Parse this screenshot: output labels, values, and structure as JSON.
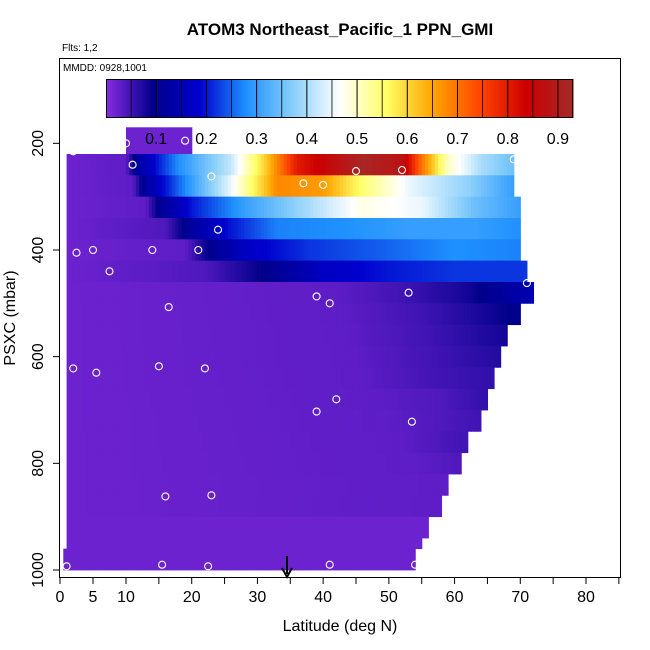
{
  "chart_data": {
    "type": "heatmap",
    "title": "ATOM3 Northeast_Pacific_1 PPN_GMI",
    "subtitle_flights": "Flts: 1,2",
    "subtitle_dates": "MMDD: 0928,1001",
    "xlabel": "Latitude (deg N)",
    "ylabel": "PSXC (mbar)",
    "xlim": [
      0,
      85
    ],
    "ylim": [
      1000,
      0
    ],
    "x_ticks": [
      "0",
      "5",
      "10",
      "20",
      "30",
      "40",
      "50",
      "60",
      "70",
      "80"
    ],
    "x_tick_values": [
      0,
      5,
      10,
      20,
      30,
      40,
      50,
      60,
      70,
      80
    ],
    "y_ticks": [
      "200",
      "400",
      "600",
      "800",
      "1000"
    ],
    "y_tick_values": [
      200,
      400,
      600,
      800,
      1000
    ],
    "colorbar": {
      "ticks": [
        "0.1",
        "0.2",
        "0.3",
        "0.4",
        "0.5",
        "0.6",
        "0.7",
        "0.8",
        "0.9"
      ],
      "tick_values": [
        0.1,
        0.2,
        0.3,
        0.4,
        0.5,
        0.6,
        0.7,
        0.8,
        0.9
      ],
      "range": [
        0,
        0.93
      ],
      "colors": [
        "#8a2be2",
        "#00008b",
        "#0000cd",
        "#1e90ff",
        "#87cefa",
        "#ffffff",
        "#ffff66",
        "#ffa500",
        "#ff4500",
        "#cc0000",
        "#a52a2a"
      ]
    },
    "layers": [
      {
        "p_top": 170,
        "p_bot": 220,
        "x0": 10,
        "x1": 20,
        "profile": [
          [
            10,
            0.02
          ],
          [
            20,
            0.02
          ]
        ]
      },
      {
        "p_top": 220,
        "p_bot": 260,
        "x0": 1,
        "x1": 69,
        "profile": [
          [
            1,
            0.02
          ],
          [
            10,
            0.03
          ],
          [
            12,
            0.13
          ],
          [
            18,
            0.28
          ],
          [
            26,
            0.42
          ],
          [
            31,
            0.6
          ],
          [
            36,
            0.8
          ],
          [
            46,
            0.92
          ],
          [
            52,
            0.88
          ],
          [
            55,
            0.7
          ],
          [
            59,
            0.5
          ],
          [
            64,
            0.4
          ],
          [
            69,
            0.35
          ]
        ]
      },
      {
        "p_top": 260,
        "p_bot": 300,
        "x0": 1,
        "x1": 69,
        "profile": [
          [
            1,
            0.02
          ],
          [
            11,
            0.03
          ],
          [
            13,
            0.12
          ],
          [
            18,
            0.25
          ],
          [
            26,
            0.45
          ],
          [
            33,
            0.68
          ],
          [
            40,
            0.66
          ],
          [
            46,
            0.55
          ],
          [
            53,
            0.45
          ],
          [
            62,
            0.38
          ],
          [
            69,
            0.3
          ]
        ]
      },
      {
        "p_top": 300,
        "p_bot": 340,
        "x0": 1,
        "x1": 70,
        "profile": [
          [
            1,
            0.02
          ],
          [
            13,
            0.03
          ],
          [
            15,
            0.1
          ],
          [
            20,
            0.2
          ],
          [
            28,
            0.3
          ],
          [
            38,
            0.4
          ],
          [
            46,
            0.48
          ],
          [
            55,
            0.45
          ],
          [
            63,
            0.35
          ],
          [
            70,
            0.3
          ]
        ]
      },
      {
        "p_top": 340,
        "p_bot": 380,
        "x0": 1,
        "x1": 70,
        "profile": [
          [
            1,
            0.02
          ],
          [
            16,
            0.04
          ],
          [
            20,
            0.12
          ],
          [
            26,
            0.2
          ],
          [
            33,
            0.27
          ],
          [
            43,
            0.28
          ],
          [
            53,
            0.3
          ],
          [
            63,
            0.3
          ],
          [
            70,
            0.28
          ]
        ]
      },
      {
        "p_top": 380,
        "p_bot": 420,
        "x0": 1,
        "x1": 70,
        "profile": [
          [
            1,
            0.02
          ],
          [
            19,
            0.03
          ],
          [
            23,
            0.1
          ],
          [
            28,
            0.17
          ],
          [
            38,
            0.22
          ],
          [
            50,
            0.25
          ],
          [
            60,
            0.28
          ],
          [
            70,
            0.27
          ]
        ]
      },
      {
        "p_top": 420,
        "p_bot": 460,
        "x0": 1,
        "x1": 71,
        "profile": [
          [
            1,
            0.02
          ],
          [
            22,
            0.04
          ],
          [
            32,
            0.1
          ],
          [
            40,
            0.17
          ],
          [
            50,
            0.2
          ],
          [
            60,
            0.22
          ],
          [
            71,
            0.22
          ]
        ]
      },
      {
        "p_top": 460,
        "p_bot": 500,
        "x0": 1,
        "x1": 72,
        "profile": [
          [
            1,
            0.02
          ],
          [
            42,
            0.03
          ],
          [
            52,
            0.05
          ],
          [
            62,
            0.08
          ],
          [
            68,
            0.12
          ],
          [
            72,
            0.15
          ]
        ]
      },
      {
        "p_top": 500,
        "p_bot": 540,
        "x0": 1,
        "x1": 70,
        "profile": [
          [
            1,
            0.02
          ],
          [
            43,
            0.03
          ],
          [
            55,
            0.05
          ],
          [
            65,
            0.08
          ],
          [
            70,
            0.1
          ]
        ]
      },
      {
        "p_top": 540,
        "p_bot": 580,
        "x0": 1,
        "x1": 68,
        "profile": [
          [
            1,
            0.02
          ],
          [
            44,
            0.03
          ],
          [
            56,
            0.05
          ],
          [
            68,
            0.08
          ]
        ]
      },
      {
        "p_top": 580,
        "p_bot": 620,
        "x0": 1,
        "x1": 67,
        "profile": [
          [
            1,
            0.02
          ],
          [
            45,
            0.03
          ],
          [
            57,
            0.05
          ],
          [
            67,
            0.07
          ]
        ]
      },
      {
        "p_top": 620,
        "p_bot": 660,
        "x0": 1,
        "x1": 66,
        "profile": [
          [
            1,
            0.02
          ],
          [
            46,
            0.03
          ],
          [
            58,
            0.05
          ],
          [
            66,
            0.06
          ]
        ]
      },
      {
        "p_top": 660,
        "p_bot": 700,
        "x0": 1,
        "x1": 65,
        "profile": [
          [
            1,
            0.02
          ],
          [
            48,
            0.03
          ],
          [
            58,
            0.04
          ],
          [
            65,
            0.06
          ]
        ]
      },
      {
        "p_top": 700,
        "p_bot": 740,
        "x0": 1,
        "x1": 64,
        "profile": [
          [
            1,
            0.02
          ],
          [
            50,
            0.03
          ],
          [
            58,
            0.04
          ],
          [
            64,
            0.05
          ]
        ]
      },
      {
        "p_top": 740,
        "p_bot": 780,
        "x0": 1,
        "x1": 62,
        "profile": [
          [
            1,
            0.02
          ],
          [
            52,
            0.03
          ],
          [
            62,
            0.05
          ]
        ]
      },
      {
        "p_top": 780,
        "p_bot": 820,
        "x0": 1,
        "x1": 61,
        "profile": [
          [
            1,
            0.02
          ],
          [
            54,
            0.03
          ],
          [
            61,
            0.04
          ]
        ]
      },
      {
        "p_top": 820,
        "p_bot": 860,
        "x0": 1,
        "x1": 59,
        "profile": [
          [
            1,
            0.02
          ],
          [
            59,
            0.03
          ]
        ]
      },
      {
        "p_top": 860,
        "p_bot": 900,
        "x0": 1,
        "x1": 58,
        "profile": [
          [
            1,
            0.02
          ],
          [
            58,
            0.03
          ]
        ]
      },
      {
        "p_top": 900,
        "p_bot": 940,
        "x0": 1,
        "x1": 56,
        "profile": [
          [
            1,
            0.02
          ],
          [
            56,
            0.02
          ]
        ]
      },
      {
        "p_top": 940,
        "p_bot": 960,
        "x0": 1,
        "x1": 55,
        "profile": [
          [
            1,
            0.02
          ],
          [
            55,
            0.02
          ]
        ]
      },
      {
        "p_top": 960,
        "p_bot": 1000,
        "x0": 0.5,
        "x1": 54,
        "profile": [
          [
            0.5,
            0.02
          ],
          [
            54,
            0.02
          ]
        ]
      }
    ],
    "observations": [
      {
        "lat": 2,
        "p": 215
      },
      {
        "lat": 10,
        "p": 200
      },
      {
        "lat": 19,
        "p": 195
      },
      {
        "lat": 11,
        "p": 240
      },
      {
        "lat": 23,
        "p": 262
      },
      {
        "lat": 37,
        "p": 275
      },
      {
        "lat": 40,
        "p": 278
      },
      {
        "lat": 45,
        "p": 252
      },
      {
        "lat": 52,
        "p": 250
      },
      {
        "lat": 69,
        "p": 230
      },
      {
        "lat": 24,
        "p": 362
      },
      {
        "lat": 2.5,
        "p": 405
      },
      {
        "lat": 5,
        "p": 400
      },
      {
        "lat": 14,
        "p": 400
      },
      {
        "lat": 21,
        "p": 400
      },
      {
        "lat": 7.5,
        "p": 440
      },
      {
        "lat": 71,
        "p": 462
      },
      {
        "lat": 39,
        "p": 487
      },
      {
        "lat": 41,
        "p": 500
      },
      {
        "lat": 53,
        "p": 480
      },
      {
        "lat": 16.5,
        "p": 507
      },
      {
        "lat": 2,
        "p": 622
      },
      {
        "lat": 5.5,
        "p": 630
      },
      {
        "lat": 15,
        "p": 618
      },
      {
        "lat": 22,
        "p": 622
      },
      {
        "lat": 42,
        "p": 680
      },
      {
        "lat": 39,
        "p": 703
      },
      {
        "lat": 53.5,
        "p": 722
      },
      {
        "lat": 16,
        "p": 862
      },
      {
        "lat": 23,
        "p": 860
      },
      {
        "lat": 1,
        "p": 993
      },
      {
        "lat": 15.5,
        "p": 990
      },
      {
        "lat": 22.5,
        "p": 993
      },
      {
        "lat": 41,
        "p": 990
      },
      {
        "lat": 54,
        "p": 990
      }
    ],
    "arrow_lat": 34.5
  }
}
